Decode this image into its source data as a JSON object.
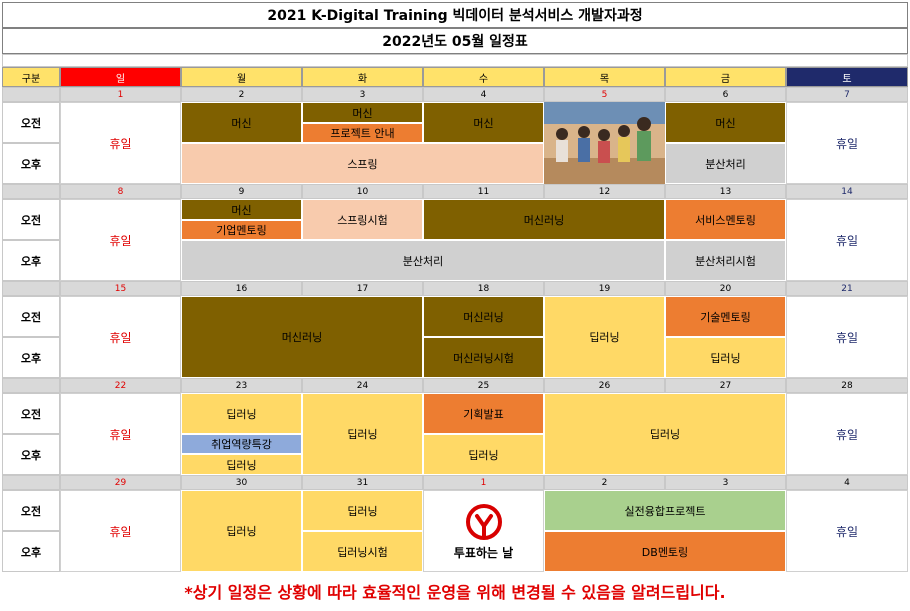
{
  "header": {
    "title": "2021 K-Digital Training 빅데이터 분석서비스 개발자과정",
    "subtitle": "2022년도 05월 일정표"
  },
  "days": {
    "label": "구분",
    "sun": "일",
    "mon": "월",
    "tue": "화",
    "wed": "수",
    "thu": "목",
    "fri": "금",
    "sat": "토"
  },
  "rows": {
    "am": "오전",
    "pm": "오후"
  },
  "weeks": [
    {
      "dates": [
        "1",
        "2",
        "3",
        "4",
        "5",
        "6",
        "7"
      ],
      "holiday_sun": "휴일",
      "holiday_sat": "휴일",
      "ev_mon_am": "머신",
      "ev_tue_am1": "머신",
      "ev_tue_am2": "프로젝트 안내",
      "ev_wed_am": "머신",
      "ev_fri_am": "머신",
      "ev_pm_span": "스프링",
      "ev_fri_pm": "분산처리"
    },
    {
      "dates": [
        "8",
        "9",
        "10",
        "11",
        "12",
        "13",
        "14"
      ],
      "holiday_sun": "휴일",
      "holiday_sat": "휴일",
      "ev_mon_am1": "머신",
      "ev_mon_am2": "기업멘토링",
      "ev_tue_am": "스프링시험",
      "ev_wedthu_am": "머신러닝",
      "ev_fri_am": "서비스멘토링",
      "ev_pm_span": "분산처리",
      "ev_fri_pm": "분산처리시험"
    },
    {
      "dates": [
        "15",
        "16",
        "17",
        "18",
        "19",
        "20",
        "21"
      ],
      "holiday_sun": "휴일",
      "holiday_sat": "휴일",
      "ev_montue": "머신러닝",
      "ev_wed_am": "머신러닝",
      "ev_wed_pm": "머신러닝시험",
      "ev_thu": "딥러닝",
      "ev_fri_am": "기술멘토링",
      "ev_fri_pm": "딥러닝"
    },
    {
      "dates": [
        "22",
        "23",
        "24",
        "25",
        "26",
        "27",
        "28"
      ],
      "holiday_sun": "휴일",
      "holiday_sat": "휴일",
      "ev_mon_am": "딥러닝",
      "ev_mon_mid": "취업역량특강",
      "ev_mon_pm": "딥러닝",
      "ev_tue": "딥러닝",
      "ev_wed_am": "기획발표",
      "ev_wed_pm": "딥러닝",
      "ev_thufri": "딥러닝"
    },
    {
      "dates": [
        "29",
        "30",
        "31",
        "1",
        "2",
        "3",
        "4"
      ],
      "holiday_sun": "휴일",
      "holiday_sat": "휴일",
      "ev_mon": "딥러닝",
      "ev_tue_am": "딥러닝",
      "ev_tue_pm": "딥러닝시험",
      "ev_wed_logo": "투표하는 날",
      "ev_thufri_am": "실전융합프로젝트",
      "ev_thufri_pm": "DB멘토링"
    }
  ],
  "footer": {
    "note": "*상기 일정은 상황에 따라 효율적인 운영을 위해 변경될 수 있음을 알려드립니다."
  }
}
